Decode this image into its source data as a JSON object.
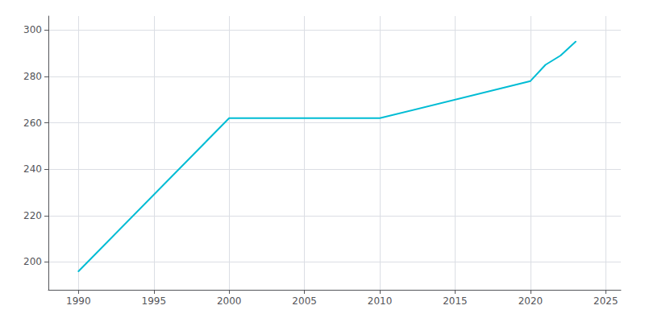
{
  "chart_data": {
    "type": "line",
    "x": [
      1990,
      2000,
      2010,
      2020,
      2021,
      2022,
      2023
    ],
    "values": [
      196,
      262,
      262,
      278,
      285,
      289,
      295
    ],
    "color": "#00bcd4",
    "xlim": [
      1988,
      2026
    ],
    "xticks": [
      1990,
      1995,
      2000,
      2005,
      2010,
      2015,
      2020,
      2025
    ],
    "ylim": [
      188,
      306
    ],
    "yticks": [
      200,
      220,
      240,
      260,
      280,
      300
    ],
    "grid": true
  }
}
